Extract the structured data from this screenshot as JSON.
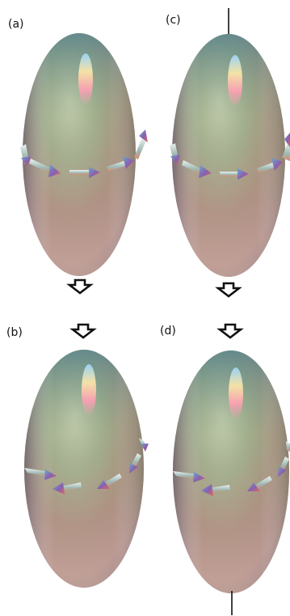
{
  "figure": {
    "panels": [
      {
        "id": "a",
        "label": "(a)",
        "axis_line": "top"
      },
      {
        "id": "c",
        "label": "(c)",
        "axis_line": "top"
      },
      {
        "id": "b",
        "label": "(b)",
        "axis_line": "none"
      },
      {
        "id": "d",
        "label": "(d)",
        "axis_line": "bottom"
      }
    ],
    "transition_arrows": [
      {
        "from": "a",
        "to": "b",
        "direction": "down"
      },
      {
        "from": "c",
        "to": "d",
        "direction": "down"
      }
    ],
    "colors": {
      "ellipsoid_top": "#5f8f98",
      "ellipsoid_mid": "#b9b08c",
      "ellipsoid_bottom": "#c79b9b",
      "highlight": "#ffd9f0",
      "arrow_shaft": "#c7d9d2",
      "arrow_head": "#8e6aa8",
      "axis_line": "#111111"
    }
  }
}
